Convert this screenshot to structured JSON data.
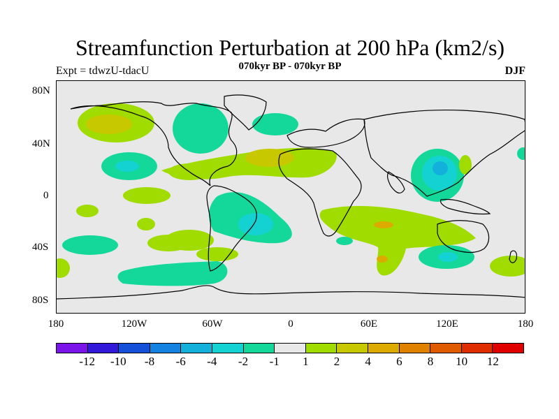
{
  "title": "Streamfunction Perturbation at 200 hPa (km2/s)",
  "subtitle": "070kyr BP - 070kyr BP",
  "left_label": "Expt = tdwzU-tdacU",
  "right_label": "DJF",
  "y_ticks": [
    "80N",
    "40N",
    "0",
    "40S",
    "80S"
  ],
  "x_ticks": [
    "180",
    "120W",
    "60W",
    "0",
    "60E",
    "120E",
    "180"
  ],
  "colorbar": {
    "colors": [
      "#7a14e8",
      "#3218d8",
      "#1450d8",
      "#1482e0",
      "#14b0dc",
      "#14d2d2",
      "#14d89a",
      "#e8e8e8",
      "#a0dc00",
      "#c8c800",
      "#dcaa00",
      "#e08200",
      "#e05a00",
      "#e02d00",
      "#e00000"
    ],
    "labels": [
      "-12",
      "-10",
      "-8",
      "-6",
      "-4",
      "-2",
      "-1",
      "1",
      "2",
      "4",
      "6",
      "8",
      "10",
      "12"
    ]
  },
  "colors": {
    "land_background": "#e8e8e8",
    "negative_1": "#14d89a",
    "negative_2": "#14d2d2",
    "negative_3": "#14b0dc",
    "positive_1": "#a0dc00",
    "positive_2": "#c8c800",
    "positive_3": "#dcaa00"
  }
}
